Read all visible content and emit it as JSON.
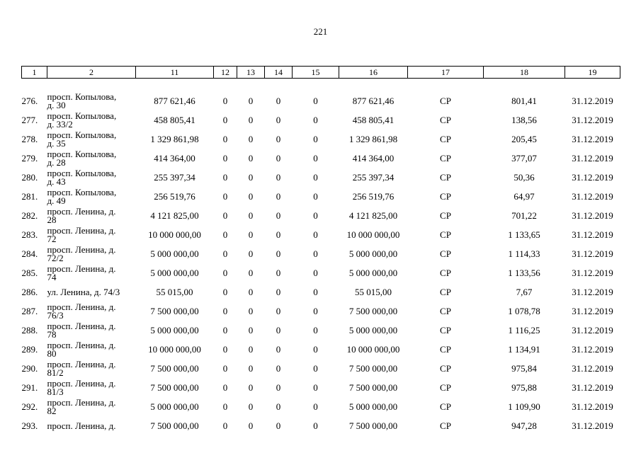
{
  "page": {
    "number": "221"
  },
  "table": {
    "header": [
      "1",
      "2",
      "11",
      "12",
      "13",
      "14",
      "15",
      "16",
      "17",
      "18",
      "19"
    ],
    "rows": [
      [
        "276.",
        "просп. Копылова,\nд. 30",
        "877 621,46",
        "0",
        "0",
        "0",
        "0",
        "877 621,46",
        "СР",
        "801,41",
        "31.12.2019"
      ],
      [
        "277.",
        "просп. Копылова,\nд. 33/2",
        "458 805,41",
        "0",
        "0",
        "0",
        "0",
        "458 805,41",
        "СР",
        "138,56",
        "31.12.2019"
      ],
      [
        "278.",
        "просп. Копылова,\nд. 35",
        "1 329 861,98",
        "0",
        "0",
        "0",
        "0",
        "1 329 861,98",
        "СР",
        "205,45",
        "31.12.2019"
      ],
      [
        "279.",
        "просп. Копылова,\nд. 28",
        "414 364,00",
        "0",
        "0",
        "0",
        "0",
        "414 364,00",
        "СР",
        "377,07",
        "31.12.2019"
      ],
      [
        "280.",
        "просп. Копылова,\nд. 43",
        "255 397,34",
        "0",
        "0",
        "0",
        "0",
        "255 397,34",
        "СР",
        "50,36",
        "31.12.2019"
      ],
      [
        "281.",
        "просп. Копылова,\nд. 49",
        "256 519,76",
        "0",
        "0",
        "0",
        "0",
        "256 519,76",
        "СР",
        "64,97",
        "31.12.2019"
      ],
      [
        "282.",
        "просп. Ленина, д.\n28",
        "4 121 825,00",
        "0",
        "0",
        "0",
        "0",
        "4 121 825,00",
        "СР",
        "701,22",
        "31.12.2019"
      ],
      [
        "283.",
        "просп. Ленина, д.\n72",
        "10 000 000,00",
        "0",
        "0",
        "0",
        "0",
        "10 000 000,00",
        "СР",
        "1 133,65",
        "31.12.2019"
      ],
      [
        "284.",
        "просп. Ленина, д.\n72/2",
        "5 000 000,00",
        "0",
        "0",
        "0",
        "0",
        "5 000 000,00",
        "СР",
        "1 114,33",
        "31.12.2019"
      ],
      [
        "285.",
        "просп. Ленина, д.\n74",
        "5 000 000,00",
        "0",
        "0",
        "0",
        "0",
        "5 000 000,00",
        "СР",
        "1 133,56",
        "31.12.2019"
      ],
      [
        "286.",
        "ул. Ленина, д. 74/3",
        "55 015,00",
        "0",
        "0",
        "0",
        "0",
        "55 015,00",
        "СР",
        "7,67",
        "31.12.2019"
      ],
      [
        "287.",
        "просп. Ленина, д.\n76/3",
        "7 500 000,00",
        "0",
        "0",
        "0",
        "0",
        "7 500 000,00",
        "СР",
        "1 078,78",
        "31.12.2019"
      ],
      [
        "288.",
        "просп. Ленина, д.\n78",
        "5 000 000,00",
        "0",
        "0",
        "0",
        "0",
        "5 000 000,00",
        "СР",
        "1 116,25",
        "31.12.2019"
      ],
      [
        "289.",
        "просп. Ленина, д.\n80",
        "10 000 000,00",
        "0",
        "0",
        "0",
        "0",
        "10 000 000,00",
        "СР",
        "1 134,91",
        "31.12.2019"
      ],
      [
        "290.",
        "просп. Ленина, д.\n81/2",
        "7 500 000,00",
        "0",
        "0",
        "0",
        "0",
        "7 500 000,00",
        "СР",
        "975,84",
        "31.12.2019"
      ],
      [
        "291.",
        "просп. Ленина, д.\n81/3",
        "7 500 000,00",
        "0",
        "0",
        "0",
        "0",
        "7 500 000,00",
        "СР",
        "975,88",
        "31.12.2019"
      ],
      [
        "292.",
        "просп. Ленина, д.\n82",
        "5 000 000,00",
        "0",
        "0",
        "0",
        "0",
        "5 000 000,00",
        "СР",
        "1 109,90",
        "31.12.2019"
      ],
      [
        "293.",
        "просп. Ленина, д.",
        "7 500 000,00",
        "0",
        "0",
        "0",
        "0",
        "7 500 000,00",
        "СР",
        "947,28",
        "31.12.2019"
      ]
    ]
  }
}
